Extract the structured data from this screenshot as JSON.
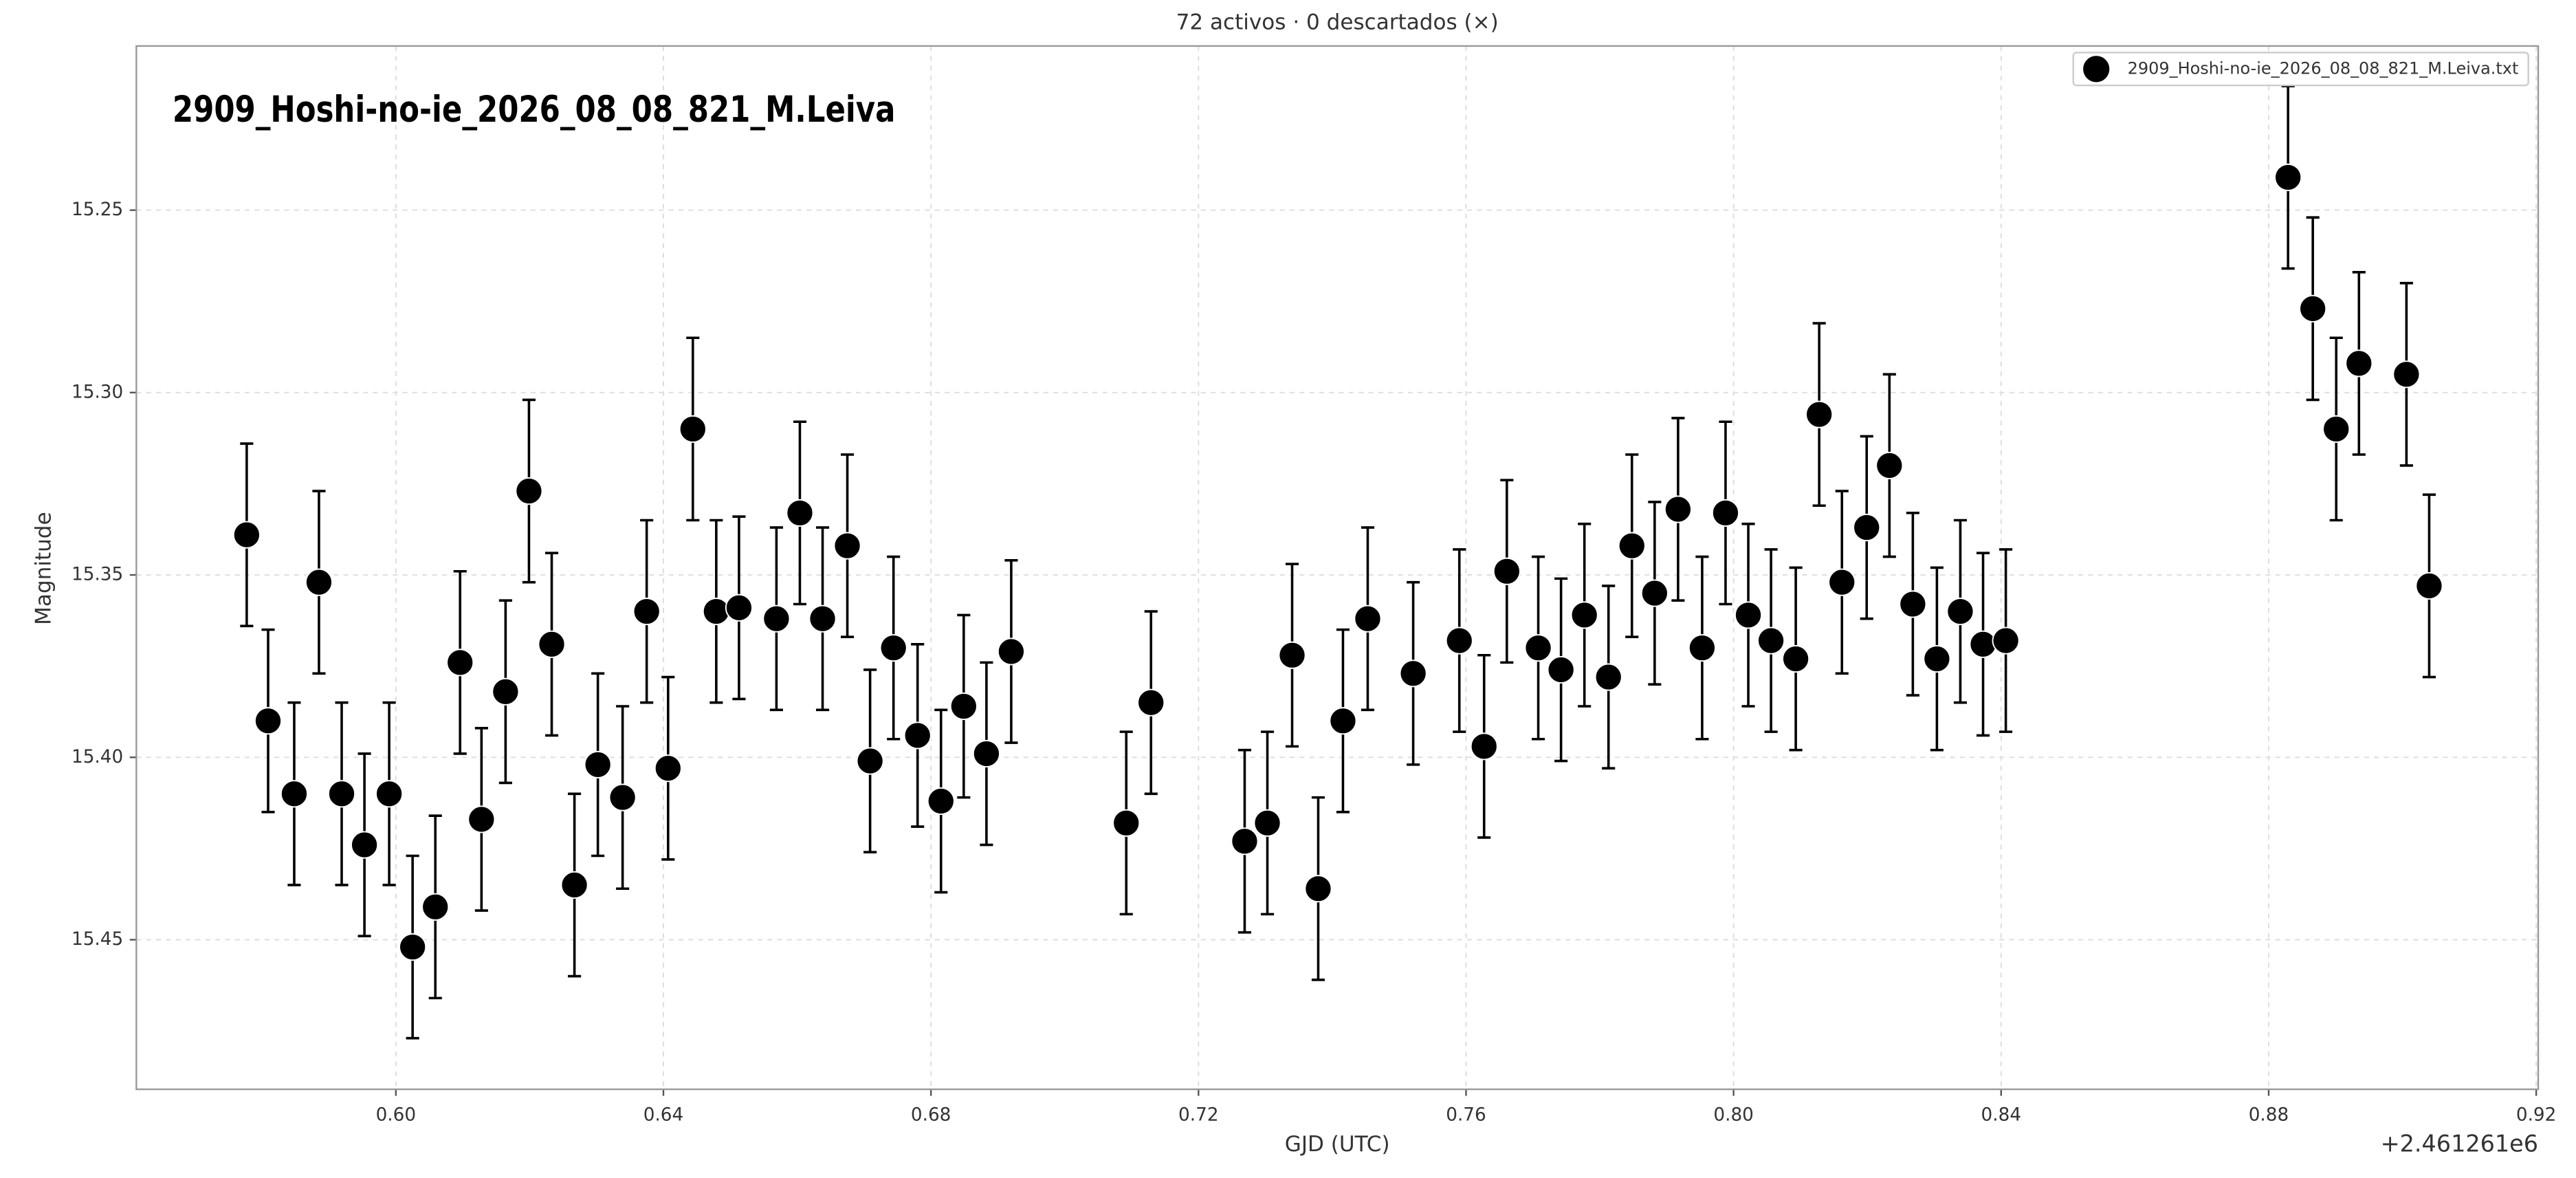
{
  "chart_data": {
    "type": "scatter",
    "title": "72 activos · 0 descartados (×)",
    "annotation": "2909_Hoshi-no-ie_2026_08_08_821_M.Leiva",
    "x_label": "GJD (UTC)",
    "y_label": "Magnitude",
    "x_offset_label": "+2.461261e6",
    "invert_y": true,
    "grid": true,
    "legend": "upper right",
    "xlim": [
      0.5612,
      0.9203
    ],
    "ylim": [
      15.205,
      15.491
    ],
    "xticks": [
      {
        "value": 0.6,
        "label": "0.60"
      },
      {
        "value": 0.64,
        "label": "0.64"
      },
      {
        "value": 0.68,
        "label": "0.68"
      },
      {
        "value": 0.72,
        "label": "0.72"
      },
      {
        "value": 0.76,
        "label": "0.76"
      },
      {
        "value": 0.8,
        "label": "0.80"
      },
      {
        "value": 0.84,
        "label": "0.84"
      },
      {
        "value": 0.88,
        "label": "0.88"
      },
      {
        "value": 0.92,
        "label": "0.92"
      }
    ],
    "yticks": [
      15.25,
      {
        "value": 15.3,
        "label": "15.30"
      },
      15.35,
      {
        "value": 15.4,
        "label": "15.40"
      },
      15.45
    ],
    "x": [
      0.5777,
      0.5809,
      0.5848,
      0.5885,
      0.5919,
      0.5953,
      0.599,
      0.6025,
      0.6059,
      0.6096,
      0.6128,
      0.6164,
      0.6199,
      0.6233,
      0.6267,
      0.6302,
      0.6339,
      0.6375,
      0.6407,
      0.6444,
      0.6479,
      0.6513,
      0.6569,
      0.6604,
      0.6638,
      0.6675,
      0.6709,
      0.6744,
      0.678,
      0.6815,
      0.6849,
      0.6883,
      0.692,
      0.7092,
      0.7129,
      0.7269,
      0.7303,
      0.734,
      0.7379,
      0.7416,
      0.7453,
      0.7521,
      0.759,
      0.7627,
      0.7661,
      0.7708,
      0.7742,
      0.7777,
      0.7813,
      0.7848,
      0.7882,
      0.7917,
      0.7953,
      0.7988,
      0.8022,
      0.8056,
      0.8093,
      0.8128,
      0.8162,
      0.8199,
      0.8233,
      0.8268,
      0.8304,
      0.8339,
      0.8373,
      0.8407,
      0.8829,
      0.8866,
      0.8901,
      0.8935,
      0.9006,
      0.904
    ],
    "series": [
      {
        "name": "2909_Hoshi-no-ie_2026_08_08_821_M.Leiva.txt",
        "color": "#000000",
        "values": [
          15.339,
          15.39,
          15.41,
          15.352,
          15.41,
          15.424,
          15.41,
          15.452,
          15.441,
          15.374,
          15.417,
          15.382,
          15.327,
          15.369,
          15.435,
          15.402,
          15.411,
          15.36,
          15.403,
          15.31,
          15.36,
          15.359,
          15.362,
          15.333,
          15.362,
          15.342,
          15.401,
          15.37,
          15.394,
          15.412,
          15.386,
          15.399,
          15.371,
          15.418,
          15.385,
          15.423,
          15.418,
          15.372,
          15.436,
          15.39,
          15.362,
          15.377,
          15.368,
          15.397,
          15.349,
          15.37,
          15.376,
          15.361,
          15.378,
          15.342,
          15.355,
          15.332,
          15.37,
          15.333,
          15.361,
          15.368,
          15.373,
          15.306,
          15.352,
          15.337,
          15.32,
          15.358,
          15.373,
          15.36,
          15.369,
          15.368,
          15.241,
          15.277,
          15.31,
          15.292,
          15.295,
          15.353
        ],
        "errors": [
          0.025,
          0.025,
          0.025,
          0.025,
          0.025,
          0.025,
          0.025,
          0.025,
          0.025,
          0.025,
          0.025,
          0.025,
          0.025,
          0.025,
          0.025,
          0.025,
          0.025,
          0.025,
          0.025,
          0.025,
          0.025,
          0.025,
          0.025,
          0.025,
          0.025,
          0.025,
          0.025,
          0.025,
          0.025,
          0.025,
          0.025,
          0.025,
          0.025,
          0.025,
          0.025,
          0.025,
          0.025,
          0.025,
          0.025,
          0.025,
          0.025,
          0.025,
          0.025,
          0.025,
          0.025,
          0.025,
          0.025,
          0.025,
          0.025,
          0.025,
          0.025,
          0.025,
          0.025,
          0.025,
          0.025,
          0.025,
          0.025,
          0.025,
          0.025,
          0.025,
          0.025,
          0.025,
          0.025,
          0.025,
          0.025,
          0.025,
          0.025,
          0.025,
          0.025,
          0.025,
          0.025,
          0.025
        ]
      }
    ]
  }
}
